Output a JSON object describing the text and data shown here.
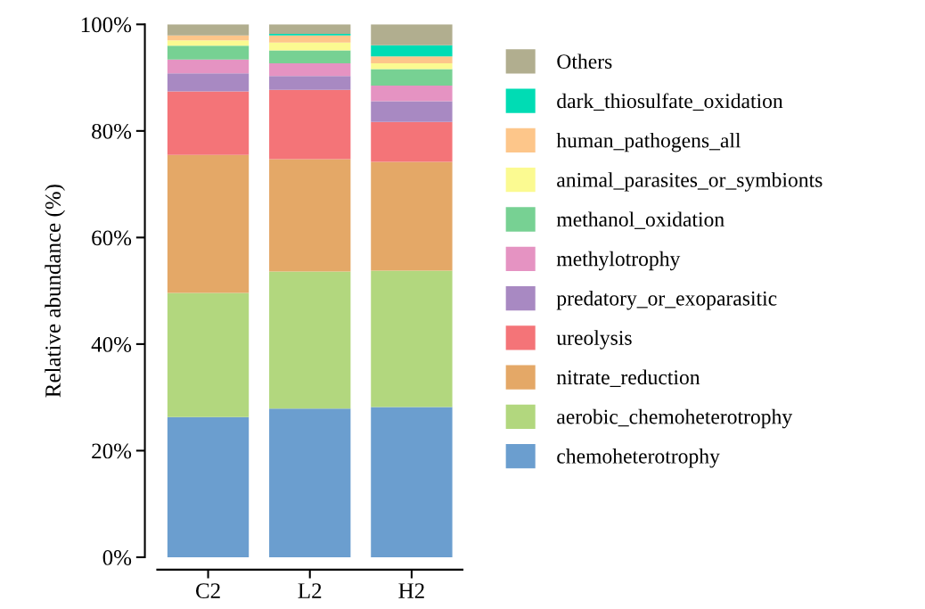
{
  "chart_data": {
    "type": "bar",
    "stacked": true,
    "ylabel": "Relative abundance (%)",
    "categories": [
      "C2",
      "L2",
      "H2"
    ],
    "ylim": [
      0,
      100
    ],
    "yticks": [
      {
        "value": 0,
        "label": "0%"
      },
      {
        "value": 20,
        "label": "20%"
      },
      {
        "value": 40,
        "label": "40%"
      },
      {
        "value": 60,
        "label": "60%"
      },
      {
        "value": 80,
        "label": "80%"
      },
      {
        "value": 100,
        "label": "100%"
      }
    ],
    "grid": false,
    "legend": "right",
    "series": [
      {
        "name": "chemoheterotrophy",
        "color": "#6b9ecf",
        "values": [
          26.3,
          27.9,
          28.2
        ]
      },
      {
        "name": "aerobic_chemoheterotrophy",
        "color": "#b2d77e",
        "values": [
          23.3,
          25.7,
          25.6
        ]
      },
      {
        "name": "nitrate_reduction",
        "color": "#e4a867",
        "values": [
          25.9,
          21.1,
          20.4
        ]
      },
      {
        "name": "ureolysis",
        "color": "#f47478",
        "values": [
          11.9,
          13.0,
          7.5
        ]
      },
      {
        "name": "predatory_or_exoparasitic",
        "color": "#a889c2",
        "values": [
          3.4,
          2.6,
          3.9
        ]
      },
      {
        "name": "methylotrophy",
        "color": "#e593c2",
        "values": [
          2.6,
          2.4,
          2.9
        ]
      },
      {
        "name": "methanol_oxidation",
        "color": "#77d193",
        "values": [
          2.6,
          2.4,
          3.1
        ]
      },
      {
        "name": "animal_parasites_or_symbionts",
        "color": "#fbfa91",
        "values": [
          1.0,
          1.5,
          1.1
        ]
      },
      {
        "name": "human_pathogens_all",
        "color": "#fdc68a",
        "values": [
          0.9,
          1.3,
          1.3
        ]
      },
      {
        "name": "dark_thiosulfate_oxidation",
        "color": "#00dcb4",
        "values": [
          0,
          0.3,
          2.1
        ]
      },
      {
        "name": "Others",
        "color": "#b1ae8f",
        "values": [
          2.1,
          1.8,
          3.9
        ]
      }
    ]
  }
}
